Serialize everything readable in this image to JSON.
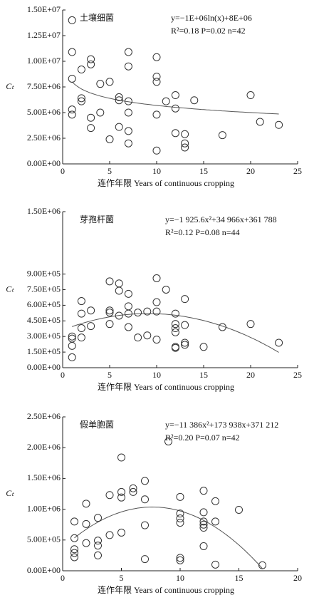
{
  "chart_data": [
    {
      "type": "scatter",
      "title": "土壤细菌",
      "equation": "y=−1E+06ln(x)+8E+06",
      "stats": "R²=0.18  P=0.02  n=42",
      "xlabel": "连作年限 Years of continuous cropping",
      "ylabel": "Cₜ",
      "fit": {
        "model": "log",
        "coefficients": [
          -1000000.0,
          8000000.0
        ],
        "x_range": [
          1,
          23
        ]
      },
      "xlim": [
        0,
        25
      ],
      "xticks": [
        0,
        5,
        10,
        15,
        20,
        25
      ],
      "ylim": [
        0,
        15000000.0
      ],
      "yticks": [
        {
          "value": 0,
          "label": "0.00E+00"
        },
        {
          "value": 2500000.0,
          "label": "2.50E+06"
        },
        {
          "value": 5000000.0,
          "label": "5.00E+06"
        },
        {
          "value": 7500000.0,
          "label": "7.50E+06"
        },
        {
          "value": 10000000.0,
          "label": "1.00E+07"
        },
        {
          "value": 12500000.0,
          "label": "1.25E+07"
        },
        {
          "value": 15000000.0,
          "label": "1.50E+07"
        }
      ],
      "x": [
        1,
        1,
        1,
        1,
        1,
        2,
        2,
        2,
        3,
        3,
        3,
        3,
        4,
        4,
        5,
        5,
        6,
        6,
        6,
        7,
        7,
        7,
        7,
        7,
        7,
        10,
        10,
        10,
        10,
        10,
        11,
        12,
        12,
        12,
        13,
        13,
        13,
        14,
        17,
        20,
        21,
        23
      ],
      "values": [
        14000000.0,
        10900000.0,
        8300000.0,
        5300000.0,
        4800000.0,
        9200000.0,
        6400000.0,
        6100000.0,
        10200000.0,
        9700000.0,
        4500000.0,
        3500000.0,
        7800000.0,
        5000000.0,
        8000000.0,
        2400000.0,
        6500000.0,
        6200000.0,
        3600000.0,
        10900000.0,
        9500000.0,
        6100000.0,
        5000000.0,
        3200000.0,
        2000000.0,
        10400000.0,
        8500000.0,
        8000000.0,
        4800000.0,
        1300000.0,
        6100000.0,
        6700000.0,
        5400000.0,
        3000000.0,
        2900000.0,
        2000000.0,
        1600000.0,
        6200000.0,
        2800000.0,
        6700000.0,
        4100000.0,
        3800000.0
      ]
    },
    {
      "type": "scatter",
      "title": "芽孢杆菌",
      "equation": "y=−1 925.6x²+34 966x+361 788",
      "stats": "R²=0.12  P=0.08  n=44",
      "xlabel": "连作年限 Years of continuous cropping",
      "ylabel": "Cₜ",
      "fit": {
        "model": "quadratic",
        "coefficients": [
          -1925.6,
          34966,
          361788
        ],
        "x_range": [
          1,
          23
        ]
      },
      "xlim": [
        0,
        25
      ],
      "xticks": [
        0,
        5,
        10,
        15,
        20,
        25
      ],
      "ylim": [
        0,
        1500000.0
      ],
      "yticks": [
        {
          "value": 0,
          "label": "0.00E+00"
        },
        {
          "value": 150000.0,
          "label": "1.50E+05"
        },
        {
          "value": 300000.0,
          "label": "3.00E+05"
        },
        {
          "value": 450000.0,
          "label": "4.50E+05"
        },
        {
          "value": 600000.0,
          "label": "6.00E+05"
        },
        {
          "value": 750000.0,
          "label": "7.50E+05"
        },
        {
          "value": 900000.0,
          "label": "9.00E+05"
        },
        {
          "value": 1500000.0,
          "label": "1.50E+06"
        }
      ],
      "x": [
        1,
        1,
        1,
        1,
        2,
        2,
        2,
        2,
        3,
        3,
        5,
        5,
        5,
        5,
        6,
        6,
        6,
        7,
        7,
        7,
        7,
        8,
        9,
        9,
        10,
        10,
        10,
        10,
        11,
        12,
        12,
        12,
        12,
        12,
        12,
        13,
        13,
        13,
        13,
        15,
        17,
        20,
        23,
        8
      ],
      "values": [
        300000.0,
        280000.0,
        210000.0,
        100000.0,
        640000.0,
        520000.0,
        380000.0,
        290000.0,
        550000.0,
        400000.0,
        830000.0,
        550000.0,
        530000.0,
        420000.0,
        810000.0,
        740000.0,
        500000.0,
        710000.0,
        590000.0,
        520000.0,
        390000.0,
        530000.0,
        540000.0,
        310000.0,
        860000.0,
        630000.0,
        540000.0,
        270000.0,
        750000.0,
        520000.0,
        420000.0,
        380000.0,
        340000.0,
        200000.0,
        190000.0,
        660000.0,
        410000.0,
        240000.0,
        220000.0,
        200000.0,
        390000.0,
        420000.0,
        240000.0,
        290000.0
      ]
    },
    {
      "type": "scatter",
      "title": "假单胞菌",
      "equation": "y=−11 386x²+173 938x+371 212",
      "stats": "R²=0.20  P=0.07  n=42",
      "xlabel": "连作年限 Years of continuous cropping",
      "ylabel": "Cₜ",
      "fit": {
        "model": "quadratic",
        "coefficients": [
          -11386,
          173938,
          371212
        ],
        "x_range": [
          1,
          17
        ]
      },
      "xlim": [
        0,
        20
      ],
      "xticks": [
        0,
        5,
        10,
        15,
        20
      ],
      "ylim": [
        0,
        2500000.0
      ],
      "yticks": [
        {
          "value": 0,
          "label": "0.00E+00"
        },
        {
          "value": 500000.0,
          "label": "5.00E+05"
        },
        {
          "value": 1000000.0,
          "label": "1.00E+06"
        },
        {
          "value": 1500000.0,
          "label": "1.50E+06"
        },
        {
          "value": 2000000.0,
          "label": "2.00E+06"
        },
        {
          "value": 2500000.0,
          "label": "2.50E+06"
        }
      ],
      "x": [
        1,
        1,
        1,
        1,
        1,
        2,
        2,
        2,
        3,
        3,
        3,
        4,
        4,
        5,
        5,
        5,
        5,
        6,
        6,
        7,
        7,
        7,
        7,
        9,
        10,
        10,
        10,
        10,
        10,
        10,
        12,
        12,
        12,
        12,
        12,
        13,
        13,
        13,
        15,
        17,
        3,
        12
      ],
      "values": [
        800000.0,
        530000.0,
        350000.0,
        290000.0,
        220000.0,
        1090000.0,
        760000.0,
        450000.0,
        860000.0,
        490000.0,
        410000.0,
        1230000.0,
        580000.0,
        1840000.0,
        1280000.0,
        1190000.0,
        620000.0,
        1340000.0,
        1280000.0,
        1460000.0,
        1160000.0,
        740000.0,
        190000.0,
        2100000.0,
        1200000.0,
        930000.0,
        850000.0,
        780000.0,
        210000.0,
        170000.0,
        1300000.0,
        950000.0,
        800000.0,
        700000.0,
        400000.0,
        1130000.0,
        800000.0,
        100000.0,
        990000.0,
        90000.0,
        250000.0,
        750000.0
      ]
    }
  ]
}
